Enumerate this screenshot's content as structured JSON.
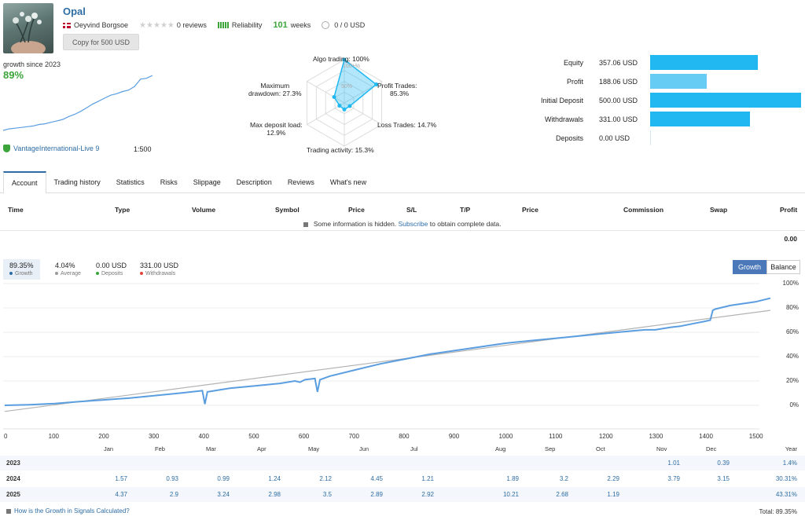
{
  "header": {
    "title": "Opal",
    "author": "Oeyvind Borgsoe",
    "reviews": "0 reviews",
    "reliability": "Reliability",
    "weeks_num": "101",
    "weeks_label": "weeks",
    "subscribers": "0 / 0 USD",
    "copy_button": "Copy for 500 USD"
  },
  "summary": {
    "growth_label": "growth since 2023",
    "growth_value": "89%",
    "broker": "VantageInternational-Live 9",
    "leverage": "1:500",
    "mini_chart_values": [
      0,
      2,
      3,
      4,
      5,
      6,
      8,
      9,
      11,
      13,
      15,
      19,
      22,
      26,
      31,
      36,
      40,
      44,
      48,
      50,
      53,
      55,
      60,
      70,
      71,
      75
    ]
  },
  "radar": {
    "algo": "Algo trading: 100%",
    "profit_trades": [
      "Profit Trades:",
      "85.3%"
    ],
    "loss_trades": "Loss Trades: 14.7%",
    "activity": "Trading activity: 15.3%",
    "deposit_load": [
      "Max deposit load:",
      "12.9%"
    ],
    "drawdown": [
      "Maximum",
      "drawdown: 27.3%"
    ],
    "scale_100": "100+%",
    "scale_50": "50%",
    "values": [
      100,
      85.3,
      14.7,
      15.3,
      12.9,
      27.3
    ]
  },
  "balances": {
    "color": "#21b8f1",
    "items": [
      {
        "label": "Equity",
        "value": "357.06 USD",
        "amount": 357.06
      },
      {
        "label": "Profit",
        "value": "188.06 USD",
        "amount": 188.06
      },
      {
        "label": "Initial Deposit",
        "value": "500.00 USD",
        "amount": 500.0
      },
      {
        "label": "Withdrawals",
        "value": "331.00 USD",
        "amount": 331.0
      },
      {
        "label": "Deposits",
        "value": "0.00 USD",
        "amount": 0
      }
    ]
  },
  "tabs": [
    "Account",
    "Trading history",
    "Statistics",
    "Risks",
    "Slippage",
    "Description",
    "Reviews",
    "What's new"
  ],
  "table": {
    "columns": [
      "Time",
      "Type",
      "Volume",
      "Symbol",
      "Price",
      "S/L",
      "T/P",
      "Price",
      "Commission",
      "Swap",
      "Profit"
    ],
    "hidden_pre": "Some information is hidden.",
    "hidden_link": "Subscribe",
    "hidden_post": "to obtain complete data.",
    "total_profit": "0.00"
  },
  "stats": [
    {
      "value": "89.35%",
      "label": "Growth",
      "color": "#2e6da4"
    },
    {
      "value": "4.04%",
      "label": "Average",
      "color": "#999999"
    },
    {
      "value": "0.00 USD",
      "label": "Deposits",
      "color": "#3ba43b"
    },
    {
      "value": "331.00 USD",
      "label": "Withdrawals",
      "color": "#e0463c"
    }
  ],
  "toggle": {
    "growth": "Growth",
    "balance": "Balance"
  },
  "chart_data": {
    "type": "line",
    "x_ticks": [
      "0",
      "100",
      "200",
      "300",
      "400",
      "500",
      "600",
      "700",
      "800",
      "900",
      "1000",
      "1100",
      "1200",
      "1300",
      "1400",
      "1500"
    ],
    "y_ticks": [
      "100%",
      "80%",
      "60%",
      "40%",
      "20%",
      "0%"
    ],
    "xlim": [
      0,
      1600
    ],
    "ylim": [
      -10,
      105
    ],
    "series": [
      {
        "x": [
          0,
          50,
          100,
          150,
          200,
          250,
          300,
          350,
          395,
          400,
          405,
          450,
          500,
          550,
          580,
          590,
          600,
          620,
          625,
          630,
          650,
          700,
          750,
          800,
          850,
          900,
          950,
          1000,
          1050,
          1100,
          1150,
          1200,
          1250,
          1280,
          1300,
          1330,
          1350,
          1400,
          1410,
          1415,
          1420,
          1450,
          1500,
          1520,
          1530
        ],
        "y": [
          0,
          0.5,
          1.5,
          3,
          4.5,
          6,
          8,
          10,
          12,
          1,
          11,
          14,
          16,
          18,
          20,
          19,
          21,
          22,
          11,
          21,
          24,
          29,
          34,
          38,
          42,
          45,
          48,
          51,
          53,
          55,
          57,
          59,
          61,
          62,
          62,
          64,
          65,
          69,
          70,
          78,
          79,
          82,
          85,
          87,
          88
        ]
      },
      {
        "x": [
          0,
          1530
        ],
        "y": [
          -5,
          78
        ]
      }
    ],
    "colors": [
      "#5b9ee0",
      "#b3b3b3"
    ]
  },
  "months": [
    "Jan",
    "Feb",
    "Mar",
    "Apr",
    "May",
    "Jun",
    "Jul",
    "Aug",
    "Sep",
    "Oct",
    "Nov",
    "Dec",
    "Year"
  ],
  "years": [
    {
      "year": "2023",
      "vals": [
        "",
        "",
        "",
        "",
        "",
        "",
        "",
        "",
        "",
        "",
        "1.01",
        "0.39"
      ],
      "total": "1.4%"
    },
    {
      "year": "2024",
      "vals": [
        "1.57",
        "0.93",
        "0.99",
        "1.24",
        "2.12",
        "4.45",
        "1.21",
        "1.89",
        "3.2",
        "2.29",
        "3.79",
        "3.15"
      ],
      "total": "30.31%"
    },
    {
      "year": "2025",
      "vals": [
        "4.37",
        "2.9",
        "3.24",
        "2.98",
        "3.5",
        "2.89",
        "2.92",
        "10.21",
        "2.68",
        "1.19",
        "",
        ""
      ],
      "total": "43.31%"
    }
  ],
  "footer": {
    "link": "How is the Growth in Signals Calculated?",
    "total": "Total: 89.35%"
  }
}
